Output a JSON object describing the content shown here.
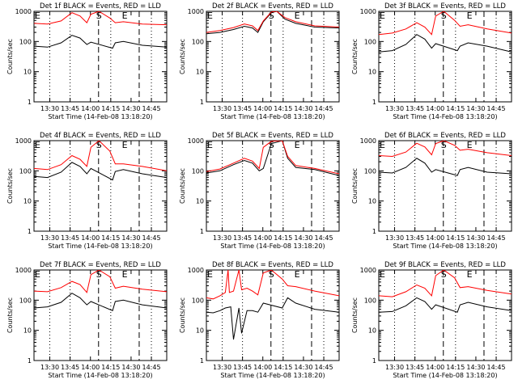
{
  "window": {
    "background": "#ffffff"
  },
  "colors": {
    "events": "#000000",
    "lld": "#ff0000",
    "axes": "#000000"
  },
  "chart_data": {
    "type": "line",
    "layout": "3x3 grid",
    "shared": {
      "ylabel": "Counts/sec",
      "xlabel": "Start Time (14-Feb-08 13:18:20)",
      "y_scale": "log",
      "ylim": [
        1,
        1000
      ],
      "y_ticks": [
        1,
        10,
        100,
        1000
      ],
      "y_tick_labels": [
        "1",
        "10",
        "100",
        "1000"
      ],
      "xlim_minutes": [
        0,
        98
      ],
      "x_ticks_minutes": [
        11.67,
        26.67,
        41.67,
        56.67,
        71.67,
        86.67
      ],
      "x_tick_labels": [
        "13:30",
        "13:45",
        "14:00",
        "14:15",
        "14:30",
        "14:45"
      ],
      "dotted_verticals_labels": [
        "13:30",
        "13:45",
        "14:15",
        "14:45"
      ],
      "event_markers": [
        {
          "label": "E",
          "time": "13:18"
        },
        {
          "label": "S",
          "time": "14:06"
        },
        {
          "label": "E",
          "time": "14:25"
        }
      ],
      "dashed_verticals_labels": [
        "14:00",
        "14:30"
      ],
      "series_names": [
        "Events",
        "LLD"
      ]
    },
    "panels": [
      {
        "title": "Det 1f BLACK = Events, RED = LLD",
        "series": [
          {
            "name": "Events",
            "color": "#000000",
            "x": [
              0,
              10,
              20,
              28,
              34,
              39,
              42,
              58,
              60,
              66,
              80,
              98
            ],
            "values": [
              70,
              65,
              90,
              160,
              130,
              80,
              95,
              60,
              90,
              100,
              75,
              65
            ]
          },
          {
            "name": "LLD",
            "color": "#ff0000",
            "x": [
              0,
              10,
              20,
              28,
              34,
              39,
              42,
              48,
              56,
              60,
              66,
              80,
              98
            ],
            "values": [
              400,
              380,
              480,
              900,
              700,
              420,
              800,
              1000,
              600,
              420,
              450,
              380,
              360
            ]
          }
        ]
      },
      {
        "title": "Det 2f BLACK = Events, RED = LLD",
        "series": [
          {
            "name": "Events",
            "color": "#000000",
            "x": [
              0,
              10,
              20,
              28,
              34,
              38,
              42,
              48,
              52,
              58,
              66,
              80,
              98
            ],
            "values": [
              180,
              200,
              250,
              320,
              280,
              200,
              450,
              900,
              1500,
              550,
              400,
              300,
              280
            ]
          },
          {
            "name": "LLD",
            "color": "#ff0000",
            "x": [
              0,
              10,
              20,
              28,
              34,
              38,
              42,
              48,
              52,
              58,
              66,
              80,
              98
            ],
            "values": [
              200,
              230,
              290,
              380,
              330,
              230,
              480,
              950,
              1900,
              620,
              450,
              330,
              300
            ]
          }
        ]
      },
      {
        "title": "Det 3f BLACK = Events, RED = LLD",
        "series": [
          {
            "name": "Events",
            "color": "#000000",
            "x": [
              0,
              10,
              20,
              28,
              34,
              39,
              42,
              58,
              60,
              66,
              80,
              98
            ],
            "values": [
              45,
              50,
              80,
              170,
              120,
              60,
              85,
              50,
              70,
              90,
              70,
              45
            ]
          },
          {
            "name": "LLD",
            "color": "#ff0000",
            "x": [
              0,
              10,
              20,
              28,
              34,
              39,
              42,
              48,
              56,
              60,
              66,
              80,
              98
            ],
            "values": [
              170,
              190,
              260,
              420,
              300,
              170,
              700,
              1000,
              500,
              320,
              360,
              260,
              190
            ]
          }
        ]
      },
      {
        "title": "Det 4f BLACK = Events, RED = LLD",
        "series": [
          {
            "name": "Events",
            "color": "#000000",
            "x": [
              0,
              10,
              20,
              28,
              34,
              39,
              42,
              58,
              60,
              66,
              80,
              98
            ],
            "values": [
              65,
              60,
              90,
              190,
              140,
              80,
              120,
              50,
              95,
              110,
              80,
              60
            ]
          },
          {
            "name": "LLD",
            "color": "#ff0000",
            "x": [
              0,
              10,
              20,
              28,
              34,
              39,
              42,
              48,
              56,
              60,
              66,
              80,
              98
            ],
            "values": [
              120,
              110,
              160,
              320,
              240,
              140,
              600,
              1000,
              450,
              170,
              170,
              140,
              100
            ]
          }
        ]
      },
      {
        "title": "Det 5f BLACK = Events, RED = LLD",
        "series": [
          {
            "name": "Events",
            "color": "#000000",
            "x": [
              0,
              10,
              20,
              28,
              34,
              39,
              42,
              48,
              56,
              60,
              66,
              80,
              98
            ],
            "values": [
              85,
              100,
              160,
              220,
              180,
              100,
              120,
              800,
              1000,
              260,
              130,
              110,
              70
            ]
          },
          {
            "name": "LLD",
            "color": "#ff0000",
            "x": [
              0,
              10,
              20,
              28,
              34,
              39,
              42,
              48,
              56,
              60,
              66,
              80,
              98
            ],
            "values": [
              95,
              115,
              180,
              260,
              210,
              120,
              600,
              950,
              1000,
              300,
              150,
              120,
              80
            ]
          }
        ]
      },
      {
        "title": "Det 6f BLACK = Events, RED = LLD",
        "series": [
          {
            "name": "Events",
            "color": "#000000",
            "x": [
              0,
              10,
              20,
              28,
              34,
              39,
              42,
              58,
              60,
              66,
              80,
              98
            ],
            "values": [
              90,
              85,
              130,
              260,
              180,
              90,
              110,
              70,
              110,
              130,
              90,
              80
            ]
          },
          {
            "name": "LLD",
            "color": "#ff0000",
            "x": [
              0,
              10,
              20,
              28,
              34,
              39,
              42,
              48,
              56,
              60,
              66,
              80,
              98
            ],
            "values": [
              320,
              300,
              420,
              820,
              620,
              340,
              800,
              1000,
              700,
              480,
              520,
              400,
              320
            ]
          }
        ]
      },
      {
        "title": "Det 7f BLACK = Events, RED = LLD",
        "series": [
          {
            "name": "Events",
            "color": "#000000",
            "x": [
              0,
              10,
              20,
              28,
              34,
              39,
              42,
              58,
              60,
              66,
              80,
              98
            ],
            "values": [
              55,
              60,
              85,
              170,
              120,
              70,
              90,
              45,
              90,
              100,
              70,
              55
            ]
          },
          {
            "name": "LLD",
            "color": "#ff0000",
            "x": [
              0,
              10,
              20,
              28,
              34,
              39,
              42,
              48,
              56,
              60,
              66,
              80,
              98
            ],
            "values": [
              200,
              190,
              260,
              420,
              330,
              180,
              700,
              1000,
              600,
              250,
              290,
              230,
              190
            ]
          }
        ]
      },
      {
        "title": "Det 8f BLACK = Events, RED = LLD",
        "series": [
          {
            "name": "Events",
            "color": "#000000",
            "x": [
              0,
              5,
              10,
              14,
              18,
              20,
              24,
              26,
              30,
              34,
              38,
              42,
              56,
              60,
              66,
              80,
              98
            ],
            "values": [
              40,
              38,
              45,
              55,
              60,
              5,
              55,
              8,
              45,
              45,
              40,
              80,
              55,
              120,
              80,
              50,
              40
            ]
          },
          {
            "name": "LLD",
            "color": "#ff0000",
            "x": [
              0,
              5,
              10,
              14,
              16,
              17,
              20,
              24,
              26,
              30,
              34,
              38,
              42,
              48,
              56,
              60,
              66,
              80,
              98
            ],
            "values": [
              120,
              110,
              140,
              180,
              1000,
              180,
              200,
              1000,
              220,
              250,
              200,
              150,
              800,
              1000,
              500,
              300,
              280,
              200,
              140
            ]
          }
        ]
      },
      {
        "title": "Det 9f BLACK = Events, RED = LLD",
        "series": [
          {
            "name": "Events",
            "color": "#000000",
            "x": [
              0,
              10,
              20,
              28,
              34,
              39,
              42,
              58,
              60,
              66,
              80,
              98
            ],
            "values": [
              40,
              42,
              65,
              120,
              90,
              50,
              70,
              40,
              70,
              85,
              60,
              45
            ]
          },
          {
            "name": "LLD",
            "color": "#ff0000",
            "x": [
              0,
              10,
              20,
              28,
              34,
              39,
              42,
              48,
              56,
              60,
              66,
              80,
              98
            ],
            "values": [
              140,
              130,
              190,
              320,
              250,
              140,
              650,
              1000,
              550,
              260,
              280,
              210,
              160
            ]
          }
        ]
      }
    ]
  }
}
